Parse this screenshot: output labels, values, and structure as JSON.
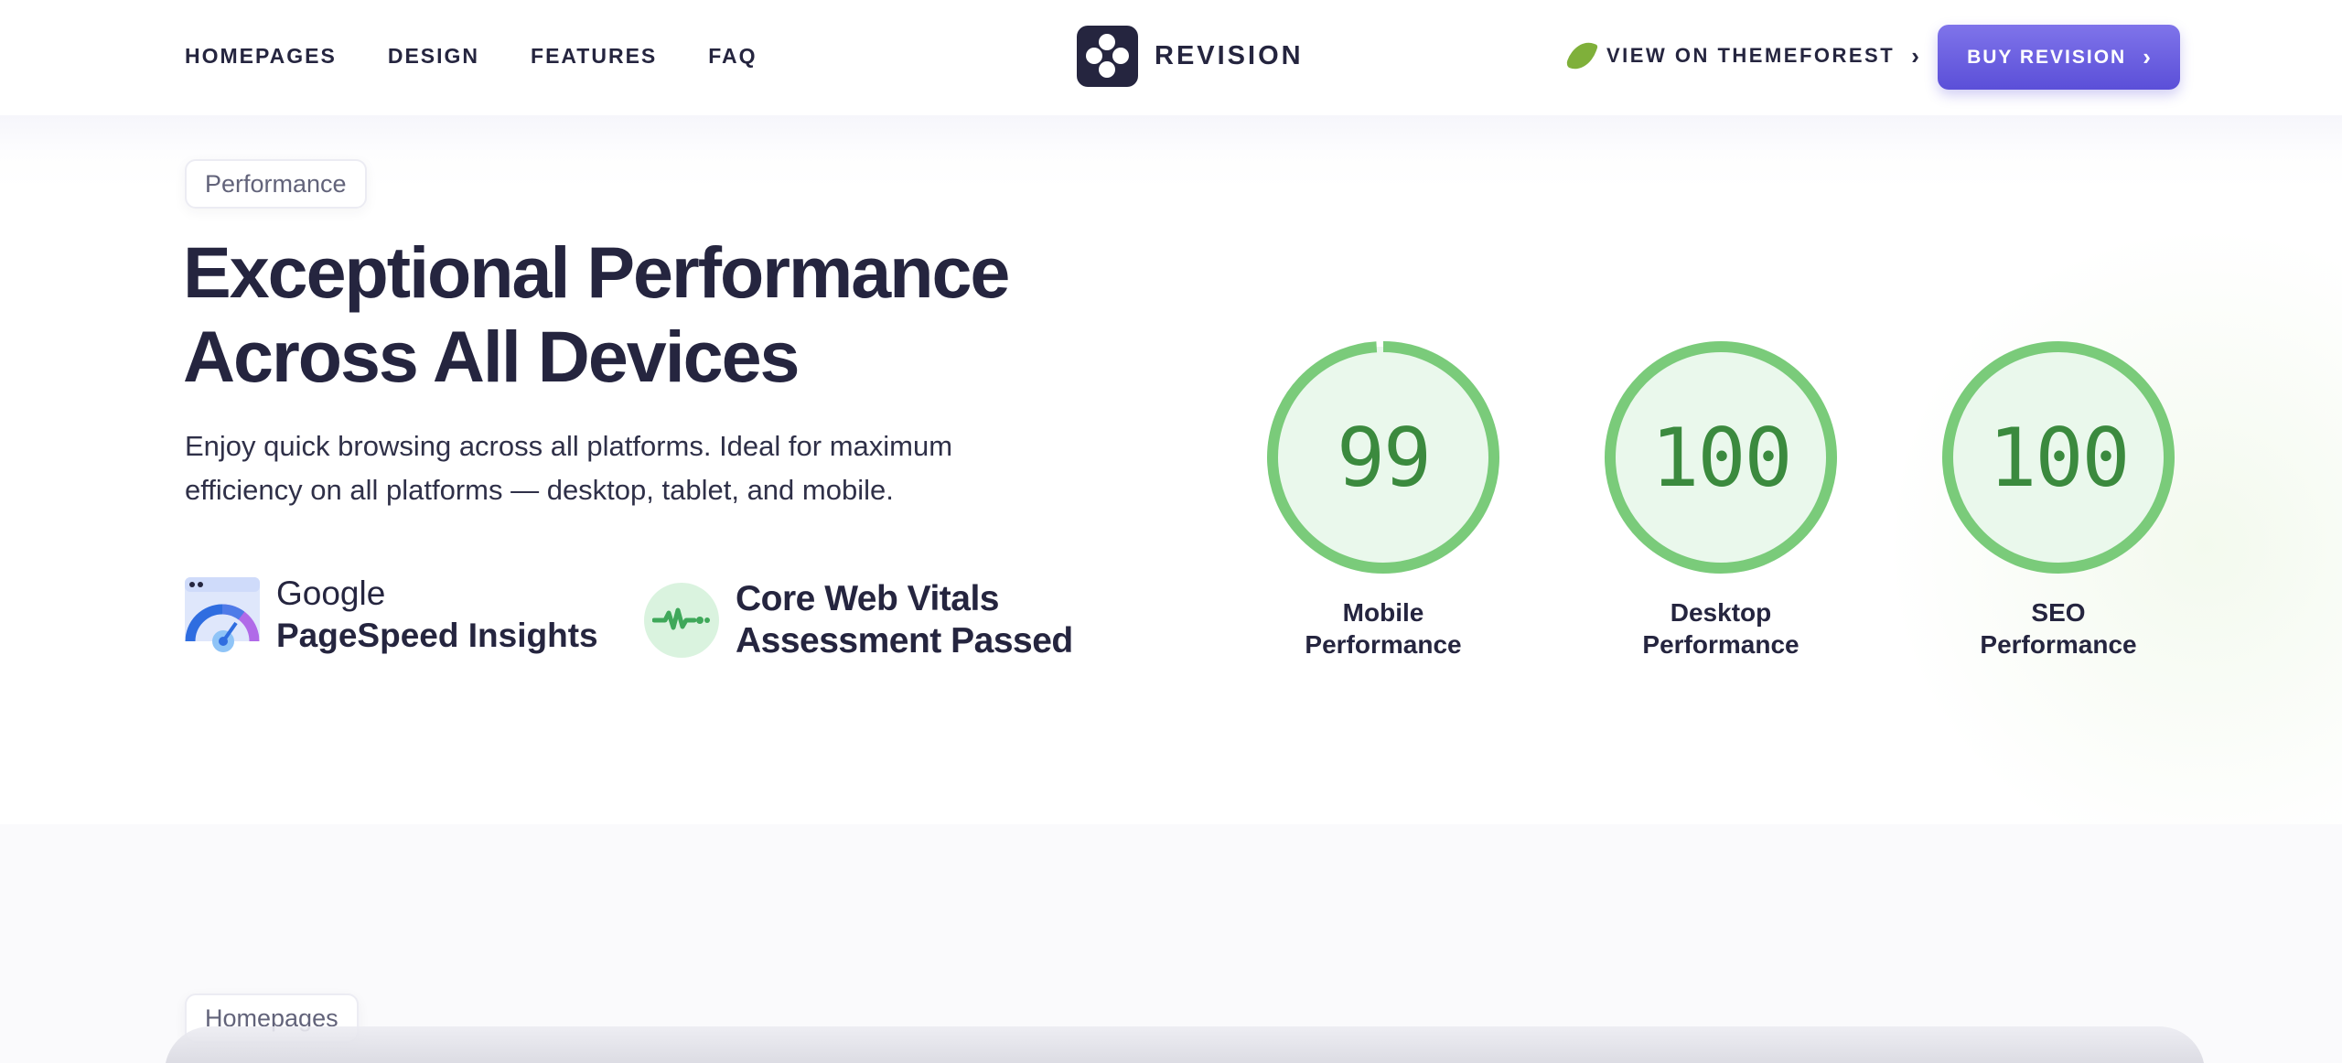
{
  "header": {
    "nav": [
      "HOMEPAGES",
      "DESIGN",
      "FEATURES",
      "FAQ"
    ],
    "logo_text": "REVISION",
    "themeforest_label": "VIEW ON THEMEFOREST",
    "buy_label": "BUY REVISION",
    "accent_color": "#5b4fd8"
  },
  "performance": {
    "tag": "Performance",
    "headline_line1": "Exceptional Performance",
    "headline_line2": "Across All Devices",
    "description": "Enjoy quick browsing across all platforms. Ideal for maximum efficiency on all platforms — desktop, tablet, and mobile.",
    "badges": {
      "google_line1": "Google",
      "google_line2": "PageSpeed Insights",
      "cwv_line1": "Core Web Vitals",
      "cwv_line2": "Assessment Passed"
    },
    "gauges": [
      {
        "score": 99,
        "label_line1": "Mobile",
        "label_line2": "Performance"
      },
      {
        "score": 100,
        "label_line1": "Desktop",
        "label_line2": "Performance"
      },
      {
        "score": 100,
        "label_line1": "SEO",
        "label_line2": "Performance"
      }
    ],
    "gauge_color": "#7acb7a"
  },
  "homepages": {
    "tag": "Homepages"
  }
}
